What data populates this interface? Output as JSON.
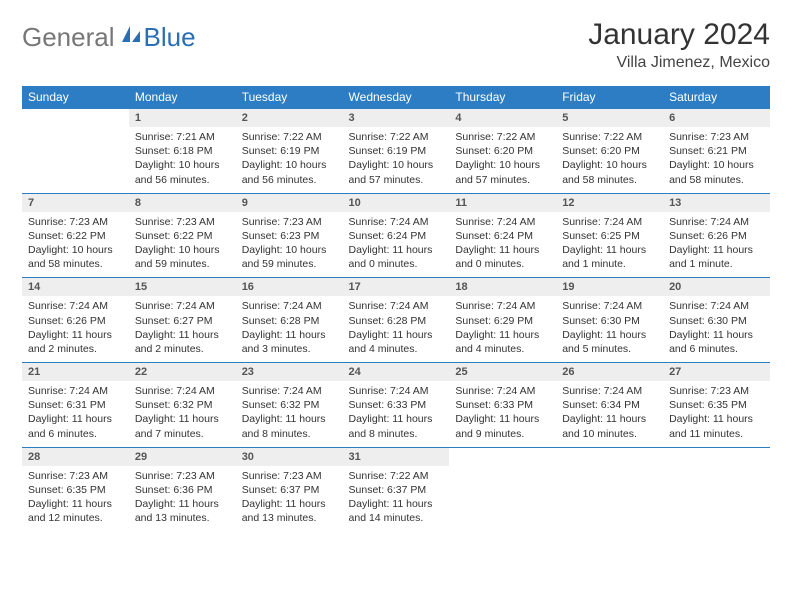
{
  "logo": {
    "gray_text": "General",
    "blue_text": "Blue"
  },
  "header": {
    "month_year": "January 2024",
    "location": "Villa Jimenez, Mexico"
  },
  "colors": {
    "header_bg": "#2d7dc4",
    "header_fg": "#ffffff",
    "daynum_bg": "#eeeeee",
    "daynum_fg": "#555555",
    "border": "#2d7dc4",
    "logo_gray": "#777777",
    "logo_blue": "#2a6fb3"
  },
  "weekdays": [
    "Sunday",
    "Monday",
    "Tuesday",
    "Wednesday",
    "Thursday",
    "Friday",
    "Saturday"
  ],
  "weeks": [
    [
      null,
      {
        "n": "1",
        "sr": "Sunrise: 7:21 AM",
        "ss": "Sunset: 6:18 PM",
        "dl": "Daylight: 10 hours and 56 minutes."
      },
      {
        "n": "2",
        "sr": "Sunrise: 7:22 AM",
        "ss": "Sunset: 6:19 PM",
        "dl": "Daylight: 10 hours and 56 minutes."
      },
      {
        "n": "3",
        "sr": "Sunrise: 7:22 AM",
        "ss": "Sunset: 6:19 PM",
        "dl": "Daylight: 10 hours and 57 minutes."
      },
      {
        "n": "4",
        "sr": "Sunrise: 7:22 AM",
        "ss": "Sunset: 6:20 PM",
        "dl": "Daylight: 10 hours and 57 minutes."
      },
      {
        "n": "5",
        "sr": "Sunrise: 7:22 AM",
        "ss": "Sunset: 6:20 PM",
        "dl": "Daylight: 10 hours and 58 minutes."
      },
      {
        "n": "6",
        "sr": "Sunrise: 7:23 AM",
        "ss": "Sunset: 6:21 PM",
        "dl": "Daylight: 10 hours and 58 minutes."
      }
    ],
    [
      {
        "n": "7",
        "sr": "Sunrise: 7:23 AM",
        "ss": "Sunset: 6:22 PM",
        "dl": "Daylight: 10 hours and 58 minutes."
      },
      {
        "n": "8",
        "sr": "Sunrise: 7:23 AM",
        "ss": "Sunset: 6:22 PM",
        "dl": "Daylight: 10 hours and 59 minutes."
      },
      {
        "n": "9",
        "sr": "Sunrise: 7:23 AM",
        "ss": "Sunset: 6:23 PM",
        "dl": "Daylight: 10 hours and 59 minutes."
      },
      {
        "n": "10",
        "sr": "Sunrise: 7:24 AM",
        "ss": "Sunset: 6:24 PM",
        "dl": "Daylight: 11 hours and 0 minutes."
      },
      {
        "n": "11",
        "sr": "Sunrise: 7:24 AM",
        "ss": "Sunset: 6:24 PM",
        "dl": "Daylight: 11 hours and 0 minutes."
      },
      {
        "n": "12",
        "sr": "Sunrise: 7:24 AM",
        "ss": "Sunset: 6:25 PM",
        "dl": "Daylight: 11 hours and 1 minute."
      },
      {
        "n": "13",
        "sr": "Sunrise: 7:24 AM",
        "ss": "Sunset: 6:26 PM",
        "dl": "Daylight: 11 hours and 1 minute."
      }
    ],
    [
      {
        "n": "14",
        "sr": "Sunrise: 7:24 AM",
        "ss": "Sunset: 6:26 PM",
        "dl": "Daylight: 11 hours and 2 minutes."
      },
      {
        "n": "15",
        "sr": "Sunrise: 7:24 AM",
        "ss": "Sunset: 6:27 PM",
        "dl": "Daylight: 11 hours and 2 minutes."
      },
      {
        "n": "16",
        "sr": "Sunrise: 7:24 AM",
        "ss": "Sunset: 6:28 PM",
        "dl": "Daylight: 11 hours and 3 minutes."
      },
      {
        "n": "17",
        "sr": "Sunrise: 7:24 AM",
        "ss": "Sunset: 6:28 PM",
        "dl": "Daylight: 11 hours and 4 minutes."
      },
      {
        "n": "18",
        "sr": "Sunrise: 7:24 AM",
        "ss": "Sunset: 6:29 PM",
        "dl": "Daylight: 11 hours and 4 minutes."
      },
      {
        "n": "19",
        "sr": "Sunrise: 7:24 AM",
        "ss": "Sunset: 6:30 PM",
        "dl": "Daylight: 11 hours and 5 minutes."
      },
      {
        "n": "20",
        "sr": "Sunrise: 7:24 AM",
        "ss": "Sunset: 6:30 PM",
        "dl": "Daylight: 11 hours and 6 minutes."
      }
    ],
    [
      {
        "n": "21",
        "sr": "Sunrise: 7:24 AM",
        "ss": "Sunset: 6:31 PM",
        "dl": "Daylight: 11 hours and 6 minutes."
      },
      {
        "n": "22",
        "sr": "Sunrise: 7:24 AM",
        "ss": "Sunset: 6:32 PM",
        "dl": "Daylight: 11 hours and 7 minutes."
      },
      {
        "n": "23",
        "sr": "Sunrise: 7:24 AM",
        "ss": "Sunset: 6:32 PM",
        "dl": "Daylight: 11 hours and 8 minutes."
      },
      {
        "n": "24",
        "sr": "Sunrise: 7:24 AM",
        "ss": "Sunset: 6:33 PM",
        "dl": "Daylight: 11 hours and 8 minutes."
      },
      {
        "n": "25",
        "sr": "Sunrise: 7:24 AM",
        "ss": "Sunset: 6:33 PM",
        "dl": "Daylight: 11 hours and 9 minutes."
      },
      {
        "n": "26",
        "sr": "Sunrise: 7:24 AM",
        "ss": "Sunset: 6:34 PM",
        "dl": "Daylight: 11 hours and 10 minutes."
      },
      {
        "n": "27",
        "sr": "Sunrise: 7:23 AM",
        "ss": "Sunset: 6:35 PM",
        "dl": "Daylight: 11 hours and 11 minutes."
      }
    ],
    [
      {
        "n": "28",
        "sr": "Sunrise: 7:23 AM",
        "ss": "Sunset: 6:35 PM",
        "dl": "Daylight: 11 hours and 12 minutes."
      },
      {
        "n": "29",
        "sr": "Sunrise: 7:23 AM",
        "ss": "Sunset: 6:36 PM",
        "dl": "Daylight: 11 hours and 13 minutes."
      },
      {
        "n": "30",
        "sr": "Sunrise: 7:23 AM",
        "ss": "Sunset: 6:37 PM",
        "dl": "Daylight: 11 hours and 13 minutes."
      },
      {
        "n": "31",
        "sr": "Sunrise: 7:22 AM",
        "ss": "Sunset: 6:37 PM",
        "dl": "Daylight: 11 hours and 14 minutes."
      },
      null,
      null,
      null
    ]
  ]
}
